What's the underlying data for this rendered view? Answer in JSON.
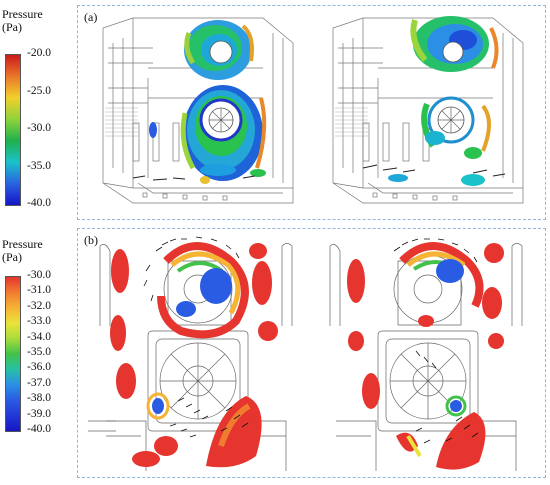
{
  "legend_a": {
    "title_line1": "Pressure",
    "title_line2": "(Pa)",
    "ticks": [
      "-20.0",
      "-25.0",
      "-30.0",
      "-35.0",
      "-40.0"
    ],
    "gradient": [
      "#cc1a1a",
      "#e8772a",
      "#f2d02c",
      "#8fd33a",
      "#1fb04d",
      "#1ac2c9",
      "#2a63e0",
      "#1414c8"
    ]
  },
  "legend_b": {
    "title_line1": "Pressure",
    "title_line2": "(Pa)",
    "ticks": [
      "-30.0",
      "-31.0",
      "-32.0",
      "-33.0",
      "-34.0",
      "-35.0",
      "-36.0",
      "-37.0",
      "-38.0",
      "-39.0",
      "-40.0"
    ],
    "gradient": [
      "#e5352e",
      "#f07c2f",
      "#f6b334",
      "#e9e33a",
      "#a9dc3a",
      "#42c24a",
      "#26c0a4",
      "#2b8fe6",
      "#2a5be3",
      "#2238d6",
      "#1515c4"
    ]
  },
  "panels": {
    "a_label": "(a)",
    "b_label": "(b)"
  }
}
